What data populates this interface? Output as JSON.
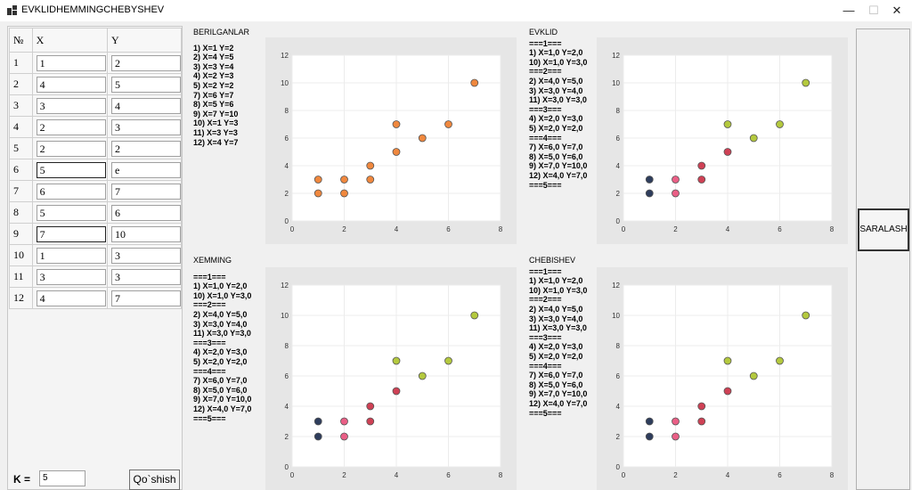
{
  "window": {
    "title": "EVKLIDHEMMINGCHEBYSHEV",
    "controls": [
      "—",
      "☐",
      "✕"
    ]
  },
  "table": {
    "headers": [
      "№",
      "X",
      "Y"
    ],
    "rows": [
      {
        "n": "1",
        "x": "1",
        "y": "2"
      },
      {
        "n": "2",
        "x": "4",
        "y": "5"
      },
      {
        "n": "3",
        "x": "3",
        "y": "4"
      },
      {
        "n": "4",
        "x": "2",
        "y": "3"
      },
      {
        "n": "5",
        "x": "2",
        "y": "2"
      },
      {
        "n": "6",
        "x": "5",
        "y": "e"
      },
      {
        "n": "7",
        "x": "6",
        "y": "7"
      },
      {
        "n": "8",
        "x": "5",
        "y": "6"
      },
      {
        "n": "9",
        "x": "7",
        "y": "10"
      },
      {
        "n": "10",
        "x": "1",
        "y": "3"
      },
      {
        "n": "11",
        "x": "3",
        "y": "3"
      },
      {
        "n": "12",
        "x": "4",
        "y": "7"
      }
    ]
  },
  "controls": {
    "k_label": "K =",
    "k_value": "5",
    "add_button": "Qo`shish",
    "sort_button": "SARALASH"
  },
  "panels": {
    "given": {
      "title": "BERILGANLAR",
      "lines": [
        "1) X=1 Y=2",
        "2) X=4 Y=5",
        "3) X=3 Y=4",
        "4) X=2 Y=3",
        "5) X=2 Y=2",
        "7) X=6 Y=7",
        "8) X=5 Y=6",
        "9) X=7 Y=10",
        "10) X=1 Y=3",
        "11) X=3 Y=3",
        "12) X=4 Y=7"
      ]
    },
    "euclid": {
      "title": "EVKLID",
      "lines": [
        "===1===",
        "1) X=1,0 Y=2,0",
        "10) X=1,0 Y=3,0",
        "===2===",
        "2) X=4,0 Y=5,0",
        "3) X=3,0 Y=4,0",
        "11) X=3,0 Y=3,0",
        "===3===",
        "4) X=2,0 Y=3,0",
        "5) X=2,0 Y=2,0",
        "===4===",
        "7) X=6,0 Y=7,0",
        "8) X=5,0 Y=6,0",
        "9) X=7,0 Y=10,0",
        "12) X=4,0 Y=7,0",
        "===5==="
      ]
    },
    "hamming": {
      "title": "XEMMING",
      "lines": [
        "===1===",
        "1) X=1,0 Y=2,0",
        "10) X=1,0 Y=3,0",
        "===2===",
        "2) X=4,0 Y=5,0",
        "3) X=3,0 Y=4,0",
        "11) X=3,0 Y=3,0",
        "===3===",
        "4) X=2,0 Y=3,0",
        "5) X=2,0 Y=2,0",
        "===4===",
        "7) X=6,0 Y=7,0",
        "8) X=5,0 Y=6,0",
        "9) X=7,0 Y=10,0",
        "12) X=4,0 Y=7,0",
        "===5==="
      ]
    },
    "chebyshev": {
      "title": "CHEBISHEV",
      "lines": [
        "===1===",
        "1) X=1,0 Y=2,0",
        "10) X=1,0 Y=3,0",
        "===2===",
        "2) X=4,0 Y=5,0",
        "3) X=3,0 Y=4,0",
        "11) X=3,0 Y=3,0",
        "===3===",
        "4) X=2,0 Y=3,0",
        "5) X=2,0 Y=2,0",
        "===4===",
        "7) X=6,0 Y=7,0",
        "8) X=5,0 Y=6,0",
        "9) X=7,0 Y=10,0",
        "12) X=4,0 Y=7,0",
        "===5==="
      ]
    }
  },
  "chart_data": [
    {
      "type": "scatter",
      "name": "given",
      "xlim": [
        0,
        8
      ],
      "ylim": [
        0,
        12
      ],
      "xticks": [
        "0",
        "2",
        "4",
        "6",
        "8"
      ],
      "yticks": [
        "0",
        "2",
        "4",
        "6",
        "8",
        "10",
        "12"
      ],
      "grid": true,
      "points": [
        {
          "x": 1,
          "y": 2,
          "color": "#f0883e"
        },
        {
          "x": 1,
          "y": 3,
          "color": "#f0883e"
        },
        {
          "x": 2,
          "y": 2,
          "color": "#f0883e"
        },
        {
          "x": 2,
          "y": 3,
          "color": "#f0883e"
        },
        {
          "x": 3,
          "y": 3,
          "color": "#f0883e"
        },
        {
          "x": 3,
          "y": 4,
          "color": "#f0883e"
        },
        {
          "x": 4,
          "y": 5,
          "color": "#f0883e"
        },
        {
          "x": 4,
          "y": 7,
          "color": "#f0883e"
        },
        {
          "x": 5,
          "y": 6,
          "color": "#f0883e"
        },
        {
          "x": 6,
          "y": 7,
          "color": "#f0883e"
        },
        {
          "x": 7,
          "y": 10,
          "color": "#f0883e"
        }
      ]
    },
    {
      "type": "scatter",
      "name": "euclid",
      "xlim": [
        0,
        8
      ],
      "ylim": [
        0,
        12
      ],
      "xticks": [
        "0",
        "2",
        "4",
        "6",
        "8"
      ],
      "yticks": [
        "0",
        "2",
        "4",
        "6",
        "8",
        "10",
        "12"
      ],
      "grid": true,
      "points": [
        {
          "x": 1,
          "y": 2,
          "color": "#2e3d5c"
        },
        {
          "x": 1,
          "y": 3,
          "color": "#2e3d5c"
        },
        {
          "x": 2,
          "y": 2,
          "color": "#ea5f86"
        },
        {
          "x": 2,
          "y": 3,
          "color": "#ea5f86"
        },
        {
          "x": 3,
          "y": 3,
          "color": "#cf4155"
        },
        {
          "x": 3,
          "y": 4,
          "color": "#cf4155"
        },
        {
          "x": 4,
          "y": 5,
          "color": "#cf4155"
        },
        {
          "x": 4,
          "y": 7,
          "color": "#b4c93e"
        },
        {
          "x": 5,
          "y": 6,
          "color": "#b4c93e"
        },
        {
          "x": 6,
          "y": 7,
          "color": "#b4c93e"
        },
        {
          "x": 7,
          "y": 10,
          "color": "#b4c93e"
        }
      ]
    },
    {
      "type": "scatter",
      "name": "hamming",
      "xlim": [
        0,
        8
      ],
      "ylim": [
        0,
        12
      ],
      "xticks": [
        "0",
        "2",
        "4",
        "6",
        "8"
      ],
      "yticks": [
        "0",
        "2",
        "4",
        "6",
        "8",
        "10",
        "12"
      ],
      "grid": true,
      "points": [
        {
          "x": 1,
          "y": 2,
          "color": "#2e3d5c"
        },
        {
          "x": 1,
          "y": 3,
          "color": "#2e3d5c"
        },
        {
          "x": 2,
          "y": 2,
          "color": "#ea5f86"
        },
        {
          "x": 2,
          "y": 3,
          "color": "#ea5f86"
        },
        {
          "x": 3,
          "y": 3,
          "color": "#cf4155"
        },
        {
          "x": 3,
          "y": 4,
          "color": "#cf4155"
        },
        {
          "x": 4,
          "y": 5,
          "color": "#cf4155"
        },
        {
          "x": 4,
          "y": 7,
          "color": "#b4c93e"
        },
        {
          "x": 5,
          "y": 6,
          "color": "#b4c93e"
        },
        {
          "x": 6,
          "y": 7,
          "color": "#b4c93e"
        },
        {
          "x": 7,
          "y": 10,
          "color": "#b4c93e"
        }
      ]
    },
    {
      "type": "scatter",
      "name": "chebyshev",
      "xlim": [
        0,
        8
      ],
      "ylim": [
        0,
        12
      ],
      "xticks": [
        "0",
        "2",
        "4",
        "6",
        "8"
      ],
      "yticks": [
        "0",
        "2",
        "4",
        "6",
        "8",
        "10",
        "12"
      ],
      "grid": true,
      "points": [
        {
          "x": 1,
          "y": 2,
          "color": "#2e3d5c"
        },
        {
          "x": 1,
          "y": 3,
          "color": "#2e3d5c"
        },
        {
          "x": 2,
          "y": 2,
          "color": "#ea5f86"
        },
        {
          "x": 2,
          "y": 3,
          "color": "#ea5f86"
        },
        {
          "x": 3,
          "y": 3,
          "color": "#cf4155"
        },
        {
          "x": 3,
          "y": 4,
          "color": "#cf4155"
        },
        {
          "x": 4,
          "y": 5,
          "color": "#cf4155"
        },
        {
          "x": 4,
          "y": 7,
          "color": "#b4c93e"
        },
        {
          "x": 5,
          "y": 6,
          "color": "#b4c93e"
        },
        {
          "x": 6,
          "y": 7,
          "color": "#b4c93e"
        },
        {
          "x": 7,
          "y": 10,
          "color": "#b4c93e"
        }
      ]
    }
  ]
}
